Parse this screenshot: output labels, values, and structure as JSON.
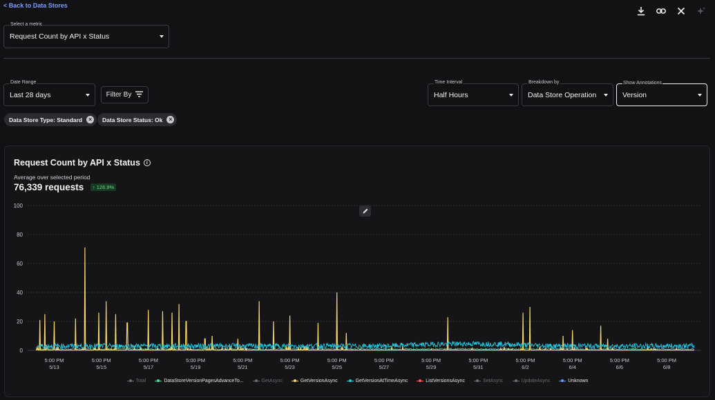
{
  "nav": {
    "back_label": "< Back to Data Stores"
  },
  "toolbar": {
    "icons": [
      "download-icon",
      "link-icon",
      "close-icon",
      "sparkle-icon"
    ]
  },
  "metric_select": {
    "label": "Select a metric",
    "value": "Request Count by API x Status"
  },
  "filters": {
    "date_range": {
      "label": "Date Range",
      "value": "Last 28 days"
    },
    "filter_by_label": "Filter By",
    "time_interval": {
      "label": "Time Interval",
      "value": "Half Hours"
    },
    "breakdown": {
      "label": "Breakdown by",
      "value": "Data Store Operation"
    },
    "annotations": {
      "label": "Show Annotations",
      "value": "Version"
    },
    "chips": [
      {
        "label": "Data Store Type: Standard"
      },
      {
        "label": "Data Store Status: Ok"
      }
    ]
  },
  "chart_card": {
    "title": "Request Count by API x Status",
    "subtitle": "Average over selected period",
    "total": "76,339 requests",
    "delta": "126.9%"
  },
  "colors": {
    "background": "#121215",
    "accent_link": "#7d9dff",
    "series_yellow": "#f3d56a",
    "series_cyan": "#28c7e0",
    "series_green": "#56d89a",
    "series_red": "#ff5a5a",
    "series_blue": "#6b9bff",
    "delta_green": "#6cd48d"
  },
  "chart_data": {
    "type": "line",
    "title": "Request Count by API x Status",
    "ylim": [
      0,
      100
    ],
    "y_ticks": [
      "0",
      "20",
      "40",
      "60",
      "80",
      "100"
    ],
    "grid": true,
    "x_ticks": [
      {
        "time": "5:00 PM",
        "date": "5/13"
      },
      {
        "time": "5:00 PM",
        "date": "5/15"
      },
      {
        "time": "5:00 PM",
        "date": "5/17"
      },
      {
        "time": "5:00 PM",
        "date": "5/19"
      },
      {
        "time": "5:00 PM",
        "date": "5/21"
      },
      {
        "time": "5:00 PM",
        "date": "5/23"
      },
      {
        "time": "5:00 PM",
        "date": "5/25"
      },
      {
        "time": "5:00 PM",
        "date": "5/27"
      },
      {
        "time": "5:00 PM",
        "date": "5/29"
      },
      {
        "time": "5:00 PM",
        "date": "5/31"
      },
      {
        "time": "5:00 PM",
        "date": "6/2"
      },
      {
        "time": "5:00 PM",
        "date": "6/4"
      },
      {
        "time": "5:00 PM",
        "date": "6/6"
      },
      {
        "time": "5:00 PM",
        "date": "6/8"
      }
    ],
    "legend_position": "bottom",
    "series": [
      {
        "name": "Total",
        "enabled": false,
        "color": "#8a8b90"
      },
      {
        "name": "DataStoreVersionPagesAdvanceTo...",
        "enabled": true,
        "color": "#56d89a"
      },
      {
        "name": "GetAsync",
        "enabled": false,
        "color": "#8a8b90"
      },
      {
        "name": "GetVersionAsync",
        "enabled": true,
        "color": "#f3d56a",
        "peaks": [
          {
            "day": 12.4,
            "value": 21
          },
          {
            "day": 12.6,
            "value": 25
          },
          {
            "day": 13.0,
            "value": 20
          },
          {
            "day": 13.9,
            "value": 22
          },
          {
            "day": 14.3,
            "value": 71
          },
          {
            "day": 14.9,
            "value": 26
          },
          {
            "day": 15.2,
            "value": 34
          },
          {
            "day": 15.6,
            "value": 25
          },
          {
            "day": 16.1,
            "value": 19
          },
          {
            "day": 17.0,
            "value": 28
          },
          {
            "day": 17.6,
            "value": 27
          },
          {
            "day": 18.0,
            "value": 26
          },
          {
            "day": 18.3,
            "value": 32
          },
          {
            "day": 18.6,
            "value": 20
          },
          {
            "day": 19.4,
            "value": 8
          },
          {
            "day": 19.7,
            "value": 10
          },
          {
            "day": 20.8,
            "value": 8
          },
          {
            "day": 21.7,
            "value": 34
          },
          {
            "day": 22.3,
            "value": 20
          },
          {
            "day": 23.0,
            "value": 24
          },
          {
            "day": 24.2,
            "value": 19
          },
          {
            "day": 25.0,
            "value": 40
          },
          {
            "day": 25.4,
            "value": 12
          },
          {
            "day": 29.7,
            "value": 23
          },
          {
            "day": 32.9,
            "value": 26
          },
          {
            "day": 33.2,
            "value": 30
          },
          {
            "day": 34.6,
            "value": 10
          },
          {
            "day": 35.0,
            "value": 14
          },
          {
            "day": 36.2,
            "value": 17
          },
          {
            "day": 36.5,
            "value": 8
          }
        ]
      },
      {
        "name": "GetVersionAtTimeAsync",
        "enabled": true,
        "color": "#28c7e0",
        "baseline": 3
      },
      {
        "name": "ListVersionsAsync",
        "enabled": true,
        "color": "#ff5a5a"
      },
      {
        "name": "SetAsync",
        "enabled": false,
        "color": "#8a8b90"
      },
      {
        "name": "UpdateAsync",
        "enabled": false,
        "color": "#8a8b90"
      },
      {
        "name": "Unknown",
        "enabled": true,
        "color": "#6b9bff"
      }
    ]
  }
}
